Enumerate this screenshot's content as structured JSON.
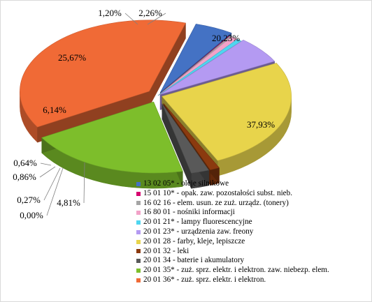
{
  "chart_data": {
    "type": "pie",
    "style": "3d-exploded",
    "title": "",
    "legend_position": "bottom-right",
    "slices": [
      {
        "code_label": "13 02 05* - oleje silnikowe",
        "value": 4.81,
        "value_label": "4,81%",
        "color": "#4472C4"
      },
      {
        "code_label": "15 01 10* - opak. zaw. pozostałości subst. nieb.",
        "value": 0.0,
        "value_label": "0,00%",
        "color": "#D6006F"
      },
      {
        "code_label": "16 02 16 - elem. usun. ze zuż. urządz. (tonery)",
        "value": 0.27,
        "value_label": "0,27%",
        "color": "#A5A5A5"
      },
      {
        "code_label": "16 80 01 - nośniki informacji",
        "value": 0.86,
        "value_label": "0,86%",
        "color": "#F2A2C8"
      },
      {
        "code_label": "20 01 21* - lampy fluorescencyjne",
        "value": 0.64,
        "value_label": "0,64%",
        "color": "#4FD6F0"
      },
      {
        "code_label": "20 01 23* - urządzenia zaw. freony",
        "value": 6.14,
        "value_label": "6,14%",
        "color": "#B49AF2"
      },
      {
        "code_label": "20 01 28 - farby, kleje, lepiszcze",
        "value": 25.67,
        "value_label": "25,67%",
        "color": "#E8D44B"
      },
      {
        "code_label": "20 01 32 - leki",
        "value": 1.2,
        "value_label": "1,20%",
        "color": "#8B3A0F"
      },
      {
        "code_label": "20 01 34 - baterie i akumulatory",
        "value": 2.26,
        "value_label": "2,26%",
        "color": "#595959"
      },
      {
        "code_label": "20 01 35* - zuż. sprz. elektr. i elektron. zaw. niebezp. elem.",
        "value": 20.23,
        "value_label": "20,23%",
        "color": "#7DBE2B"
      },
      {
        "code_label": "20 01 36* - zuż. sprz. elektr. i elektron.",
        "value": 37.93,
        "value_label": "37,93%",
        "color": "#F06A36"
      }
    ]
  }
}
